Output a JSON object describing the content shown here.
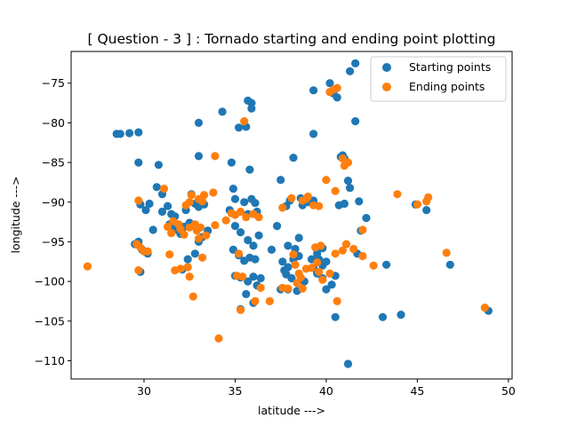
{
  "chart_data": {
    "type": "scatter",
    "title": "[ Question - 3 ] : Tornado starting and ending point plotting",
    "xlabel": "latitude --->",
    "ylabel": "longitude --->",
    "xlim": [
      26,
      50.2
    ],
    "ylim": [
      -112.3,
      -71
    ],
    "xticks": [
      30,
      35,
      40,
      45,
      50
    ],
    "yticks": [
      -75,
      -80,
      -85,
      -90,
      -95,
      -100,
      -105,
      -110
    ],
    "grid": false,
    "legend_position": "top-right",
    "series": [
      {
        "name": "Starting points",
        "color": "#1f77b4",
        "points": [
          [
            28.5,
            -81.4
          ],
          [
            28.7,
            -81.4
          ],
          [
            29.2,
            -81.3
          ],
          [
            29.7,
            -81.2
          ],
          [
            29.7,
            -85.0
          ],
          [
            30.8,
            -85.3
          ],
          [
            29.5,
            -95.3
          ],
          [
            29.7,
            -95.0
          ],
          [
            29.9,
            -96.0
          ],
          [
            30.1,
            -96.3
          ],
          [
            30.2,
            -96.5
          ],
          [
            29.8,
            -98.8
          ],
          [
            30.1,
            -91.0
          ],
          [
            30.3,
            -90.2
          ],
          [
            29.8,
            -90.3
          ],
          [
            30.5,
            -93.5
          ],
          [
            30.7,
            -88.1
          ],
          [
            31.0,
            -89.0
          ],
          [
            31.0,
            -91.2
          ],
          [
            31.3,
            -90.5
          ],
          [
            31.5,
            -91.5
          ],
          [
            31.7,
            -91.8
          ],
          [
            31.4,
            -92.8
          ],
          [
            31.6,
            -93.4
          ],
          [
            31.9,
            -93.6
          ],
          [
            32.0,
            -94.0
          ],
          [
            32.2,
            -93.1
          ],
          [
            32.5,
            -92.6
          ],
          [
            32.3,
            -91.0
          ],
          [
            32.6,
            -89.0
          ],
          [
            32.8,
            -90.2
          ],
          [
            33.0,
            -90.6
          ],
          [
            33.1,
            -89.8
          ],
          [
            33.3,
            -90.3
          ],
          [
            32.1,
            -98.5
          ],
          [
            32.4,
            -97.2
          ],
          [
            32.8,
            -96.5
          ],
          [
            33.0,
            -95.0
          ],
          [
            33.2,
            -94.4
          ],
          [
            33.5,
            -93.6
          ],
          [
            33.0,
            -80.0
          ],
          [
            33.0,
            -84.2
          ],
          [
            34.3,
            -78.6
          ],
          [
            35.2,
            -80.6
          ],
          [
            35.6,
            -80.5
          ],
          [
            35.7,
            -77.2
          ],
          [
            35.9,
            -77.5
          ],
          [
            35.9,
            -78.2
          ],
          [
            34.8,
            -85.0
          ],
          [
            35.8,
            -85.9
          ],
          [
            34.7,
            -91.0
          ],
          [
            35.0,
            -89.6
          ],
          [
            34.9,
            -88.3
          ],
          [
            35.5,
            -90.0
          ],
          [
            35.7,
            -91.5
          ],
          [
            35.9,
            -89.6
          ],
          [
            36.1,
            -90.1
          ],
          [
            36.2,
            -91.2
          ],
          [
            35.0,
            -93.0
          ],
          [
            35.3,
            -93.8
          ],
          [
            35.7,
            -94.8
          ],
          [
            36.0,
            -95.5
          ],
          [
            36.3,
            -94.2
          ],
          [
            34.9,
            -96.0
          ],
          [
            35.2,
            -96.7
          ],
          [
            35.5,
            -97.4
          ],
          [
            35.8,
            -97.0
          ],
          [
            36.1,
            -97.2
          ],
          [
            35.0,
            -99.3
          ],
          [
            35.3,
            -99.5
          ],
          [
            35.7,
            -100.0
          ],
          [
            36.0,
            -99.4
          ],
          [
            36.4,
            -99.6
          ],
          [
            36.2,
            -100.5
          ],
          [
            35.3,
            -103.5
          ],
          [
            35.6,
            -101.6
          ],
          [
            36.0,
            -102.7
          ],
          [
            37.0,
            -96.0
          ],
          [
            37.3,
            -93.0
          ],
          [
            37.5,
            -87.2
          ],
          [
            37.8,
            -90.5
          ],
          [
            38.0,
            -89.8
          ],
          [
            38.2,
            -84.4
          ],
          [
            37.9,
            -95.5
          ],
          [
            38.3,
            -95.9
          ],
          [
            38.5,
            -94.5
          ],
          [
            37.6,
            -97.5
          ],
          [
            37.9,
            -98.2
          ],
          [
            38.2,
            -97.2
          ],
          [
            38.5,
            -96.8
          ],
          [
            37.7,
            -98.6
          ],
          [
            37.8,
            -99.1
          ],
          [
            38.1,
            -99.6
          ],
          [
            37.5,
            -101.0
          ],
          [
            37.9,
            -101.0
          ],
          [
            38.4,
            -101.2
          ],
          [
            38.8,
            -100.0
          ],
          [
            38.6,
            -89.5
          ],
          [
            38.9,
            -89.8
          ],
          [
            38.7,
            -90.4
          ],
          [
            39.0,
            -90.0
          ],
          [
            39.3,
            -89.8
          ],
          [
            39.3,
            -81.4
          ],
          [
            39.3,
            -75.9
          ],
          [
            39.5,
            -96.5
          ],
          [
            39.8,
            -95.8
          ],
          [
            39.6,
            -97.2
          ],
          [
            39.8,
            -98.0
          ],
          [
            40.0,
            -97.5
          ],
          [
            39.3,
            -98.3
          ],
          [
            39.5,
            -99.0
          ],
          [
            39.8,
            -99.6
          ],
          [
            40.0,
            -101.0
          ],
          [
            40.3,
            -100.4
          ],
          [
            40.5,
            -99.3
          ],
          [
            39.2,
            -97.2
          ],
          [
            40.2,
            -75.0
          ],
          [
            40.4,
            -76.3
          ],
          [
            40.6,
            -76.8
          ],
          [
            40.9,
            -84.1
          ],
          [
            41.0,
            -84.5
          ],
          [
            40.8,
            -84.3
          ],
          [
            41.2,
            -87.3
          ],
          [
            41.3,
            -88.2
          ],
          [
            41.0,
            -90.2
          ],
          [
            40.7,
            -90.4
          ],
          [
            40.5,
            -104.5
          ],
          [
            41.2,
            -110.4
          ],
          [
            41.3,
            -73.5
          ],
          [
            41.6,
            -72.5
          ],
          [
            41.6,
            -79.8
          ],
          [
            41.8,
            -89.9
          ],
          [
            41.9,
            -93.6
          ],
          [
            41.7,
            -96.5
          ],
          [
            42.2,
            -92.0
          ],
          [
            43.1,
            -104.5
          ],
          [
            43.3,
            -97.9
          ],
          [
            44.1,
            -104.2
          ],
          [
            44.9,
            -90.3
          ],
          [
            45.5,
            -91.0
          ],
          [
            46.8,
            -97.9
          ],
          [
            48.9,
            -103.7
          ]
        ]
      },
      {
        "name": "Ending points",
        "color": "#ff7f0e",
        "points": [
          [
            26.9,
            -98.1
          ],
          [
            29.6,
            -95.3
          ],
          [
            29.8,
            -95.7
          ],
          [
            30.0,
            -96.2
          ],
          [
            30.2,
            -96.2
          ],
          [
            29.7,
            -89.8
          ],
          [
            29.7,
            -98.6
          ],
          [
            31.1,
            -88.3
          ],
          [
            31.3,
            -93.1
          ],
          [
            31.5,
            -93.9
          ],
          [
            31.6,
            -92.4
          ],
          [
            31.9,
            -92.8
          ],
          [
            32.0,
            -93.4
          ],
          [
            32.2,
            -94.1
          ],
          [
            32.5,
            -93.2
          ],
          [
            32.8,
            -92.8
          ],
          [
            32.9,
            -93.6
          ],
          [
            33.1,
            -93.2
          ],
          [
            31.4,
            -96.6
          ],
          [
            31.7,
            -98.6
          ],
          [
            32.0,
            -98.4
          ],
          [
            32.4,
            -98.2
          ],
          [
            32.5,
            -99.4
          ],
          [
            32.7,
            -101.9
          ],
          [
            32.6,
            -89.1
          ],
          [
            32.3,
            -90.4
          ],
          [
            32.5,
            -90.0
          ],
          [
            33.0,
            -89.6
          ],
          [
            33.2,
            -89.9
          ],
          [
            33.3,
            -89.1
          ],
          [
            33.8,
            -88.8
          ],
          [
            33.0,
            -94.6
          ],
          [
            33.4,
            -94.2
          ],
          [
            33.2,
            -97.0
          ],
          [
            33.9,
            -84.2
          ],
          [
            33.9,
            -92.9
          ],
          [
            34.1,
            -107.2
          ],
          [
            34.5,
            -92.3
          ],
          [
            34.8,
            -91.4
          ],
          [
            35.0,
            -91.6
          ],
          [
            35.3,
            -91.2
          ],
          [
            35.6,
            -91.9
          ],
          [
            36.0,
            -91.5
          ],
          [
            36.3,
            -91.9
          ],
          [
            35.2,
            -96.5
          ],
          [
            35.5,
            -79.8
          ],
          [
            35.1,
            -99.3
          ],
          [
            35.4,
            -99.4
          ],
          [
            35.3,
            -103.6
          ],
          [
            36.1,
            -102.5
          ],
          [
            36.4,
            -100.8
          ],
          [
            36.9,
            -102.5
          ],
          [
            37.6,
            -100.8
          ],
          [
            37.9,
            -100.9
          ],
          [
            37.6,
            -90.7
          ],
          [
            38.1,
            -89.5
          ],
          [
            38.2,
            -96.6
          ],
          [
            38.3,
            -97.9
          ],
          [
            38.5,
            -99.0
          ],
          [
            38.6,
            -99.5
          ],
          [
            38.4,
            -100.2
          ],
          [
            38.7,
            -100.9
          ],
          [
            38.7,
            -89.8
          ],
          [
            38.9,
            -89.6
          ],
          [
            39.0,
            -89.3
          ],
          [
            38.9,
            -98.4
          ],
          [
            39.2,
            -98.3
          ],
          [
            39.5,
            -97.6
          ],
          [
            39.6,
            -98.8
          ],
          [
            39.8,
            -99.8
          ],
          [
            40.2,
            -99.0
          ],
          [
            39.4,
            -95.7
          ],
          [
            39.7,
            -95.5
          ],
          [
            40.5,
            -96.5
          ],
          [
            40.9,
            -96.1
          ],
          [
            39.3,
            -90.4
          ],
          [
            39.6,
            -90.5
          ],
          [
            40.0,
            -87.2
          ],
          [
            40.5,
            -88.6
          ],
          [
            40.6,
            -102.5
          ],
          [
            40.2,
            -76.1
          ],
          [
            40.4,
            -75.8
          ],
          [
            40.6,
            -75.6
          ],
          [
            40.9,
            -84.5
          ],
          [
            41.2,
            -85.0
          ],
          [
            41.0,
            -85.4
          ],
          [
            41.1,
            -95.3
          ],
          [
            41.5,
            -95.9
          ],
          [
            42.0,
            -93.5
          ],
          [
            42.0,
            -96.8
          ],
          [
            42.6,
            -98.0
          ],
          [
            43.9,
            -89.0
          ],
          [
            45.0,
            -90.3
          ],
          [
            45.5,
            -89.9
          ],
          [
            45.6,
            -89.4
          ],
          [
            46.6,
            -96.4
          ],
          [
            48.7,
            -103.3
          ]
        ]
      }
    ]
  }
}
